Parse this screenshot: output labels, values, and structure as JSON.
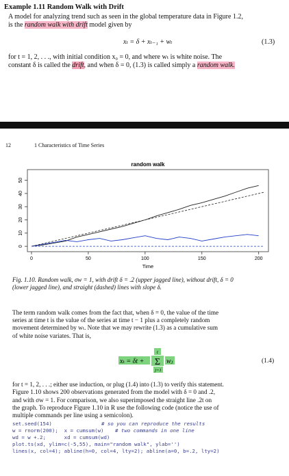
{
  "example": {
    "title": "Example 1.11  Random Walk with Drift",
    "line1": "A model for analyzing trend such as seen in the global temperature data in Figure 1.2,",
    "line2_a": "is the ",
    "line2_hl": "random walk with drift",
    "line2_b": " model given by",
    "eq13": "xₜ = δ + xₜ₋₁ + wₜ",
    "eq13_num": "(1.3)",
    "line3": "for t = 1, 2, . . ., with initial condition x₀ = 0, and where wₜ is white noise. The",
    "line4_a": "constant δ is called the ",
    "line4_hl1": "drift",
    "line4_b": ", and when δ = 0, (1.3) is called simply a ",
    "line4_hl2": "random walk."
  },
  "running_head": {
    "page": "12",
    "chapter": "1  Characteristics of Time Series"
  },
  "chart_data": {
    "type": "line",
    "title": "random walk",
    "xlabel": "Time",
    "ylabel": "",
    "xlim": [
      0,
      205
    ],
    "ylim": [
      -2,
      56
    ],
    "x_ticks": [
      0,
      50,
      100,
      150,
      200
    ],
    "y_ticks": [
      0,
      10,
      20,
      30,
      40,
      50
    ],
    "series": [
      {
        "color": "#222222",
        "style": "solid",
        "x": [
          0,
          10,
          20,
          30,
          40,
          50,
          60,
          70,
          80,
          90,
          100,
          110,
          120,
          130,
          140,
          150,
          160,
          170,
          180,
          190,
          200
        ],
        "y": [
          0,
          1,
          2.5,
          4,
          7,
          9,
          11,
          13,
          15,
          17.5,
          20,
          23,
          25.5,
          28,
          31,
          33,
          35.5,
          38,
          41,
          44,
          46
        ]
      },
      {
        "color": "#1f3cc8",
        "style": "solid",
        "x": [
          0,
          10,
          20,
          30,
          40,
          50,
          60,
          70,
          80,
          90,
          100,
          110,
          120,
          130,
          140,
          150,
          160,
          170,
          180,
          190,
          200
        ],
        "y": [
          0,
          1.5,
          3,
          4.5,
          3.5,
          5,
          6,
          4,
          5,
          6.5,
          8,
          6,
          5,
          7,
          6,
          4,
          5.5,
          7,
          8,
          9,
          8
        ]
      },
      {
        "color": "#222222",
        "style": "dashed",
        "x": [
          0,
          205
        ],
        "y": [
          0,
          41
        ]
      },
      {
        "color": "#1f3cc8",
        "style": "dashed",
        "x": [
          0,
          205
        ],
        "y": [
          0,
          0
        ]
      }
    ]
  },
  "caption": {
    "line1": "Fig. 1.10. Random walk, σw = 1, with drift δ = .2 (upper jagged line), without drift, δ = 0",
    "line2": "(lower jagged line), and straight (dashed) lines with slope δ."
  },
  "para2": [
    "The term random walk comes from the fact that, when δ = 0, the value of the time",
    "series at time t is the value of the series at time t − 1 plus a completely random",
    "movement determined by wₜ. Note that we may rewrite (1.3) as a cumulative sum",
    "of white noise variates. That is,"
  ],
  "eq14": {
    "lhs": "xₜ = δt +",
    "sigma": "Σ",
    "upper": "t",
    "lower": "j=1",
    "term": "wⱼ",
    "num": "(1.4)"
  },
  "para3": [
    "for t = 1, 2, . . .; either use induction, or plug (1.4) into (1.3) to verify this statement.",
    "Figure 1.10 shows 200 observations generated from the model with δ = 0 and .2,",
    "and with σw = 1. For comparison, we also superimposed the straight line .2t on",
    "the graph. To reproduce Figure 1.10 in R use the following code (notice the use of",
    "multiple commands per line using a semicolon)."
  ],
  "code": {
    "l1": "set.seed(154)",
    "l1c": "# so you can reproduce the results",
    "l2": "w = rnorm(200);  x = cumsum(w)",
    "l2c": "# two commands in one line",
    "l3": "wd = w +.2;      xd = cumsum(wd)",
    "l4": "plot.ts(xd, ylim=c(-5,55), main=\"random walk\", ylab='')",
    "l5": "lines(x, col=4); abline(h=0, col=4, lty=2); abline(a=0, b=.2, lty=2)"
  }
}
